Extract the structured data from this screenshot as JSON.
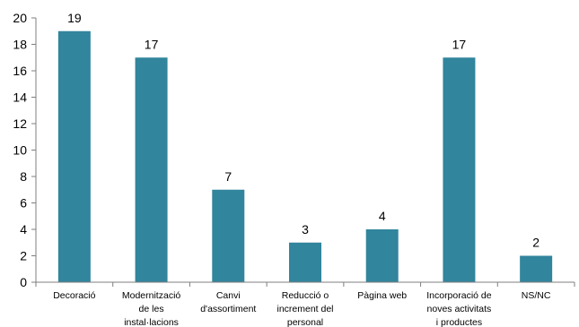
{
  "chart_data": {
    "type": "bar",
    "categories": [
      [
        "Decoració"
      ],
      [
        "Modernització",
        "de les",
        "instal·lacions"
      ],
      [
        "Canvi",
        "d'assortiment"
      ],
      [
        "Reducció o",
        "increment del",
        "personal"
      ],
      [
        "Pàgina web"
      ],
      [
        "Incorporació de",
        "noves activitats",
        "i productes"
      ],
      [
        "NS/NC"
      ]
    ],
    "values": [
      19,
      17,
      7,
      3,
      4,
      17,
      2
    ],
    "data_labels": [
      "19",
      "17",
      "7",
      "3",
      "4",
      "17",
      "2"
    ],
    "title": "",
    "xlabel": "",
    "ylabel": "",
    "ylim": [
      0,
      20
    ],
    "y_ticks": [
      "0",
      "2",
      "4",
      "6",
      "8",
      "10",
      "12",
      "14",
      "16",
      "18",
      "20"
    ],
    "grid": false,
    "legend": "none",
    "bar_color": "#31859c",
    "axis_color": "#7f7f7f"
  }
}
